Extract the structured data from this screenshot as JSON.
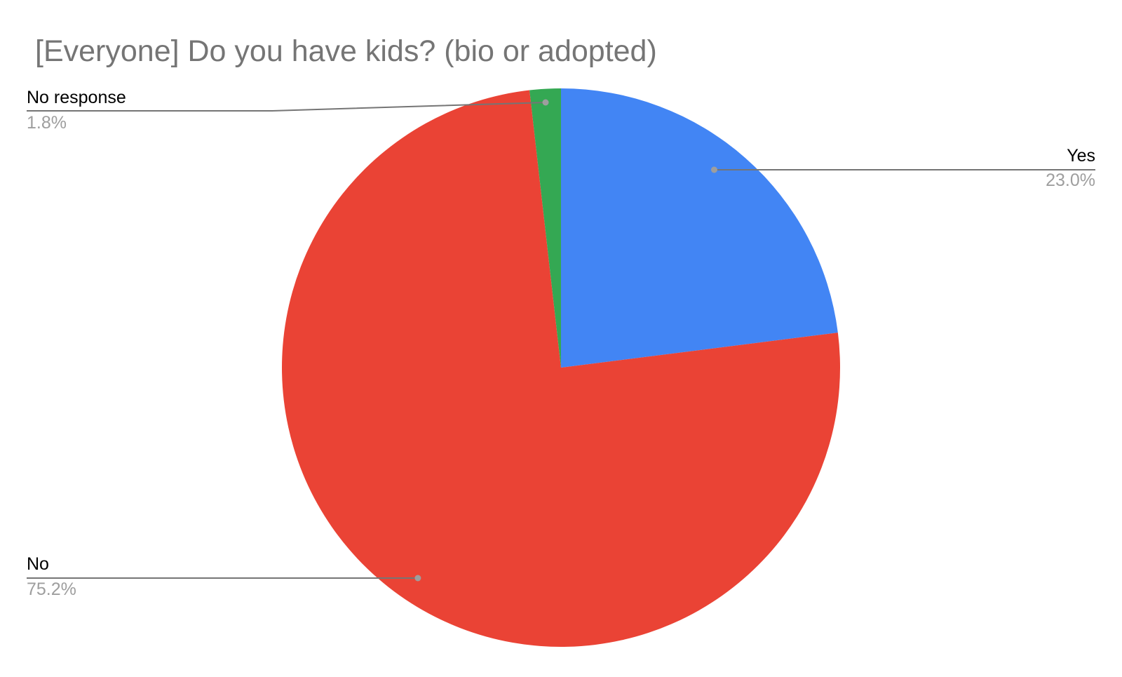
{
  "chart_data": {
    "type": "pie",
    "title": "[Everyone] Do you have kids? (bio or adopted)",
    "slices": [
      {
        "label": "Yes",
        "value": 23.0,
        "percent_label": "23.0%",
        "color": "#4285F4"
      },
      {
        "label": "No",
        "value": 75.2,
        "percent_label": "75.2%",
        "color": "#EA4335"
      },
      {
        "label": "No response",
        "value": 1.8,
        "percent_label": "1.8%",
        "color": "#34A853"
      }
    ],
    "start_angle": "12 o'clock",
    "direction": "clockwise",
    "legend": "none (outside labels with leader lines)"
  }
}
